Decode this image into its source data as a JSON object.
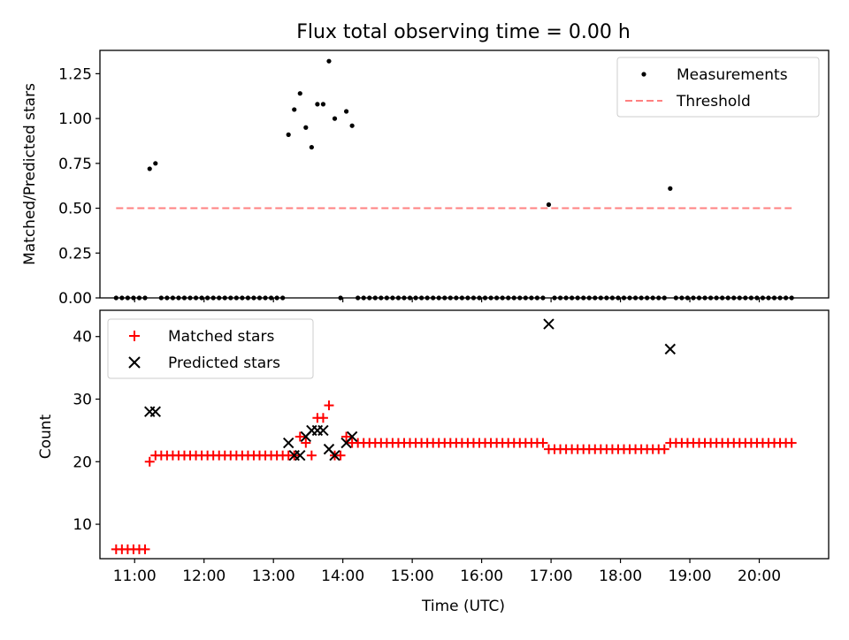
{
  "figure": {
    "title": "Flux total observing time = 0.00 h",
    "xlabel": "Time (UTC)"
  },
  "colors": {
    "measurements": "#000000",
    "threshold": "#ff8080",
    "matched": "#ff0000",
    "predicted": "#000000"
  },
  "chart_data": [
    {
      "type": "scatter",
      "panel": "top",
      "ylabel": "Matched/Predicted stars",
      "xlim": [
        "10:30",
        "21:00"
      ],
      "ylim": [
        0,
        1.38
      ],
      "yticks": [
        "0.00",
        "0.25",
        "0.50",
        "0.75",
        "1.00",
        "1.25"
      ],
      "ytick_values": [
        0,
        0.25,
        0.5,
        0.75,
        1.0,
        1.25
      ],
      "legend_position": "upper-right",
      "series": [
        {
          "name": "Measurements",
          "marker": "dot",
          "points": [
            [
              "10:44",
              0
            ],
            [
              "10:49",
              0
            ],
            [
              "10:54",
              0
            ],
            [
              "10:59",
              0
            ],
            [
              "11:04",
              0
            ],
            [
              "11:09",
              0
            ],
            [
              "11:13",
              0.72
            ],
            [
              "11:18",
              0.75
            ],
            [
              "11:23",
              0
            ],
            [
              "11:28",
              0
            ],
            [
              "11:33",
              0
            ],
            [
              "11:38",
              0
            ],
            [
              "11:43",
              0
            ],
            [
              "11:48",
              0
            ],
            [
              "11:53",
              0
            ],
            [
              "11:58",
              0
            ],
            [
              "12:03",
              0
            ],
            [
              "12:08",
              0
            ],
            [
              "12:13",
              0
            ],
            [
              "12:18",
              0
            ],
            [
              "12:23",
              0
            ],
            [
              "12:28",
              0
            ],
            [
              "12:33",
              0
            ],
            [
              "12:38",
              0
            ],
            [
              "12:43",
              0
            ],
            [
              "12:48",
              0
            ],
            [
              "12:53",
              0
            ],
            [
              "12:58",
              0
            ],
            [
              "13:03",
              0
            ],
            [
              "13:08",
              0
            ],
            [
              "13:13",
              0.91
            ],
            [
              "13:18",
              1.05
            ],
            [
              "13:23",
              1.14
            ],
            [
              "13:28",
              0.95
            ],
            [
              "13:33",
              0.84
            ],
            [
              "13:38",
              1.08
            ],
            [
              "13:43",
              1.08
            ],
            [
              "13:48",
              1.32
            ],
            [
              "13:53",
              1.0
            ],
            [
              "13:58",
              0
            ],
            [
              "14:03",
              1.04
            ],
            [
              "14:08",
              0.96
            ],
            [
              "14:13",
              0
            ],
            [
              "14:18",
              0
            ],
            [
              "14:23",
              0
            ],
            [
              "14:28",
              0
            ],
            [
              "14:33",
              0
            ],
            [
              "14:38",
              0
            ],
            [
              "14:43",
              0
            ],
            [
              "14:48",
              0
            ],
            [
              "14:53",
              0
            ],
            [
              "14:58",
              0
            ],
            [
              "15:03",
              0
            ],
            [
              "15:08",
              0
            ],
            [
              "15:13",
              0
            ],
            [
              "15:18",
              0
            ],
            [
              "15:23",
              0
            ],
            [
              "15:28",
              0
            ],
            [
              "15:33",
              0
            ],
            [
              "15:38",
              0
            ],
            [
              "15:43",
              0
            ],
            [
              "15:48",
              0
            ],
            [
              "15:53",
              0
            ],
            [
              "15:58",
              0
            ],
            [
              "16:03",
              0
            ],
            [
              "16:08",
              0
            ],
            [
              "16:13",
              0
            ],
            [
              "16:18",
              0
            ],
            [
              "16:23",
              0
            ],
            [
              "16:28",
              0
            ],
            [
              "16:33",
              0
            ],
            [
              "16:38",
              0
            ],
            [
              "16:43",
              0
            ],
            [
              "16:48",
              0
            ],
            [
              "16:53",
              0
            ],
            [
              "16:58",
              0.52
            ],
            [
              "17:03",
              0
            ],
            [
              "17:08",
              0
            ],
            [
              "17:13",
              0
            ],
            [
              "17:18",
              0
            ],
            [
              "17:23",
              0
            ],
            [
              "17:28",
              0
            ],
            [
              "17:33",
              0
            ],
            [
              "17:38",
              0
            ],
            [
              "17:43",
              0
            ],
            [
              "17:48",
              0
            ],
            [
              "17:53",
              0
            ],
            [
              "17:58",
              0
            ],
            [
              "18:03",
              0
            ],
            [
              "18:08",
              0
            ],
            [
              "18:13",
              0
            ],
            [
              "18:18",
              0
            ],
            [
              "18:23",
              0
            ],
            [
              "18:28",
              0
            ],
            [
              "18:33",
              0
            ],
            [
              "18:38",
              0
            ],
            [
              "18:43",
              0.61
            ],
            [
              "18:48",
              0
            ],
            [
              "18:53",
              0
            ],
            [
              "18:58",
              0
            ],
            [
              "19:03",
              0
            ],
            [
              "19:08",
              0
            ],
            [
              "19:13",
              0
            ],
            [
              "19:18",
              0
            ],
            [
              "19:23",
              0
            ],
            [
              "19:28",
              0
            ],
            [
              "19:33",
              0
            ],
            [
              "19:38",
              0
            ],
            [
              "19:43",
              0
            ],
            [
              "19:48",
              0
            ],
            [
              "19:53",
              0
            ],
            [
              "19:58",
              0
            ],
            [
              "20:03",
              0
            ],
            [
              "20:08",
              0
            ],
            [
              "20:13",
              0
            ],
            [
              "20:18",
              0
            ],
            [
              "20:23",
              0
            ],
            [
              "20:28",
              0
            ]
          ]
        },
        {
          "name": "Threshold",
          "marker": "dashed-line",
          "points": [
            [
              "10:44",
              0.5
            ],
            [
              "20:28",
              0.5
            ]
          ]
        }
      ]
    },
    {
      "type": "scatter",
      "panel": "bottom",
      "ylabel": "Count",
      "xlim": [
        "10:30",
        "21:00"
      ],
      "ylim": [
        4.5,
        44.2
      ],
      "yticks": [
        "10",
        "20",
        "30",
        "40"
      ],
      "ytick_values": [
        10,
        20,
        30,
        40
      ],
      "xticks": [
        "11:00",
        "12:00",
        "13:00",
        "14:00",
        "15:00",
        "16:00",
        "17:00",
        "18:00",
        "19:00",
        "20:00"
      ],
      "legend_position": "upper-left",
      "series": [
        {
          "name": "Matched stars",
          "marker": "plus",
          "points": [
            [
              "10:44",
              6
            ],
            [
              "10:49",
              6
            ],
            [
              "10:54",
              6
            ],
            [
              "10:59",
              6
            ],
            [
              "11:04",
              6
            ],
            [
              "11:09",
              6
            ],
            [
              "11:13",
              20
            ],
            [
              "11:18",
              21
            ],
            [
              "11:23",
              21
            ],
            [
              "11:28",
              21
            ],
            [
              "11:33",
              21
            ],
            [
              "11:38",
              21
            ],
            [
              "11:43",
              21
            ],
            [
              "11:48",
              21
            ],
            [
              "11:53",
              21
            ],
            [
              "11:58",
              21
            ],
            [
              "12:03",
              21
            ],
            [
              "12:08",
              21
            ],
            [
              "12:13",
              21
            ],
            [
              "12:18",
              21
            ],
            [
              "12:23",
              21
            ],
            [
              "12:28",
              21
            ],
            [
              "12:33",
              21
            ],
            [
              "12:38",
              21
            ],
            [
              "12:43",
              21
            ],
            [
              "12:48",
              21
            ],
            [
              "12:53",
              21
            ],
            [
              "12:58",
              21
            ],
            [
              "13:03",
              21
            ],
            [
              "13:08",
              21
            ],
            [
              "13:13",
              21
            ],
            [
              "13:18",
              21
            ],
            [
              "13:23",
              24
            ],
            [
              "13:28",
              23
            ],
            [
              "13:33",
              21
            ],
            [
              "13:38",
              27
            ],
            [
              "13:43",
              27
            ],
            [
              "13:48",
              29
            ],
            [
              "13:53",
              21
            ],
            [
              "13:58",
              21
            ],
            [
              "14:03",
              24
            ],
            [
              "14:08",
              23
            ],
            [
              "14:13",
              23
            ],
            [
              "14:18",
              23
            ],
            [
              "14:23",
              23
            ],
            [
              "14:28",
              23
            ],
            [
              "14:33",
              23
            ],
            [
              "14:38",
              23
            ],
            [
              "14:43",
              23
            ],
            [
              "14:48",
              23
            ],
            [
              "14:53",
              23
            ],
            [
              "14:58",
              23
            ],
            [
              "15:03",
              23
            ],
            [
              "15:08",
              23
            ],
            [
              "15:13",
              23
            ],
            [
              "15:18",
              23
            ],
            [
              "15:23",
              23
            ],
            [
              "15:28",
              23
            ],
            [
              "15:33",
              23
            ],
            [
              "15:38",
              23
            ],
            [
              "15:43",
              23
            ],
            [
              "15:48",
              23
            ],
            [
              "15:53",
              23
            ],
            [
              "15:58",
              23
            ],
            [
              "16:03",
              23
            ],
            [
              "16:08",
              23
            ],
            [
              "16:13",
              23
            ],
            [
              "16:18",
              23
            ],
            [
              "16:23",
              23
            ],
            [
              "16:28",
              23
            ],
            [
              "16:33",
              23
            ],
            [
              "16:38",
              23
            ],
            [
              "16:43",
              23
            ],
            [
              "16:48",
              23
            ],
            [
              "16:53",
              23
            ],
            [
              "16:58",
              22
            ],
            [
              "17:03",
              22
            ],
            [
              "17:08",
              22
            ],
            [
              "17:13",
              22
            ],
            [
              "17:18",
              22
            ],
            [
              "17:23",
              22
            ],
            [
              "17:28",
              22
            ],
            [
              "17:33",
              22
            ],
            [
              "17:38",
              22
            ],
            [
              "17:43",
              22
            ],
            [
              "17:48",
              22
            ],
            [
              "17:53",
              22
            ],
            [
              "17:58",
              22
            ],
            [
              "18:03",
              22
            ],
            [
              "18:08",
              22
            ],
            [
              "18:13",
              22
            ],
            [
              "18:18",
              22
            ],
            [
              "18:23",
              22
            ],
            [
              "18:28",
              22
            ],
            [
              "18:33",
              22
            ],
            [
              "18:38",
              22
            ],
            [
              "18:43",
              23
            ],
            [
              "18:48",
              23
            ],
            [
              "18:53",
              23
            ],
            [
              "18:58",
              23
            ],
            [
              "19:03",
              23
            ],
            [
              "19:08",
              23
            ],
            [
              "19:13",
              23
            ],
            [
              "19:18",
              23
            ],
            [
              "19:23",
              23
            ],
            [
              "19:28",
              23
            ],
            [
              "19:33",
              23
            ],
            [
              "19:38",
              23
            ],
            [
              "19:43",
              23
            ],
            [
              "19:48",
              23
            ],
            [
              "19:53",
              23
            ],
            [
              "19:58",
              23
            ],
            [
              "20:03",
              23
            ],
            [
              "20:08",
              23
            ],
            [
              "20:13",
              23
            ],
            [
              "20:18",
              23
            ],
            [
              "20:23",
              23
            ],
            [
              "20:28",
              23
            ]
          ]
        },
        {
          "name": "Predicted stars",
          "marker": "x",
          "points": [
            [
              "11:13",
              28
            ],
            [
              "11:18",
              28
            ],
            [
              "13:13",
              23
            ],
            [
              "13:18",
              21
            ],
            [
              "13:23",
              21
            ],
            [
              "13:28",
              24
            ],
            [
              "13:33",
              25
            ],
            [
              "13:38",
              25
            ],
            [
              "13:43",
              25
            ],
            [
              "13:48",
              22
            ],
            [
              "13:53",
              21
            ],
            [
              "14:03",
              23
            ],
            [
              "14:08",
              24
            ],
            [
              "16:58",
              42
            ],
            [
              "18:43",
              38
            ]
          ]
        }
      ]
    }
  ]
}
